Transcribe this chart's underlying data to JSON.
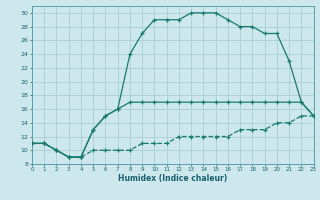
{
  "xlabel": "Humidex (Indice chaleur)",
  "bg_color": "#cce8ed",
  "grid_color": "#aacdd4",
  "line_color": "#1a7a6e",
  "xlim": [
    0,
    23
  ],
  "ylim": [
    8,
    31
  ],
  "xticks": [
    0,
    1,
    2,
    3,
    4,
    5,
    6,
    7,
    8,
    9,
    10,
    11,
    12,
    13,
    14,
    15,
    16,
    17,
    18,
    19,
    20,
    21,
    22,
    23
  ],
  "yticks": [
    8,
    10,
    12,
    14,
    16,
    18,
    20,
    22,
    24,
    26,
    28,
    30
  ],
  "line_upper_x": [
    0,
    1,
    2,
    3,
    4,
    5,
    6,
    7,
    8,
    9,
    10,
    11,
    12,
    13,
    14,
    15,
    16,
    17,
    18,
    19,
    20,
    21,
    22,
    23
  ],
  "line_upper_y": [
    11,
    11,
    10,
    9,
    9,
    13,
    15,
    16,
    24,
    27,
    29,
    29,
    29,
    30,
    30,
    30,
    29,
    28,
    28,
    27,
    27,
    23,
    17,
    15
  ],
  "line_mid_x": [
    0,
    1,
    2,
    3,
    4,
    5,
    6,
    7,
    8,
    9,
    10,
    11,
    12,
    13,
    14,
    15,
    16,
    17,
    18,
    19,
    20,
    21,
    22,
    23
  ],
  "line_mid_y": [
    11,
    11,
    10,
    9,
    9,
    13,
    15,
    16,
    17,
    17,
    17,
    17,
    17,
    17,
    17,
    17,
    17,
    17,
    17,
    17,
    17,
    17,
    17,
    15
  ],
  "line_low_x": [
    0,
    1,
    2,
    3,
    4,
    5,
    6,
    7,
    8,
    9,
    10,
    11,
    12,
    13,
    14,
    15,
    16,
    17,
    18,
    19,
    20,
    21,
    22,
    23
  ],
  "line_low_y": [
    11,
    11,
    10,
    9,
    9,
    10,
    10,
    10,
    10,
    11,
    11,
    11,
    12,
    12,
    12,
    12,
    12,
    13,
    13,
    13,
    14,
    14,
    15,
    15
  ]
}
